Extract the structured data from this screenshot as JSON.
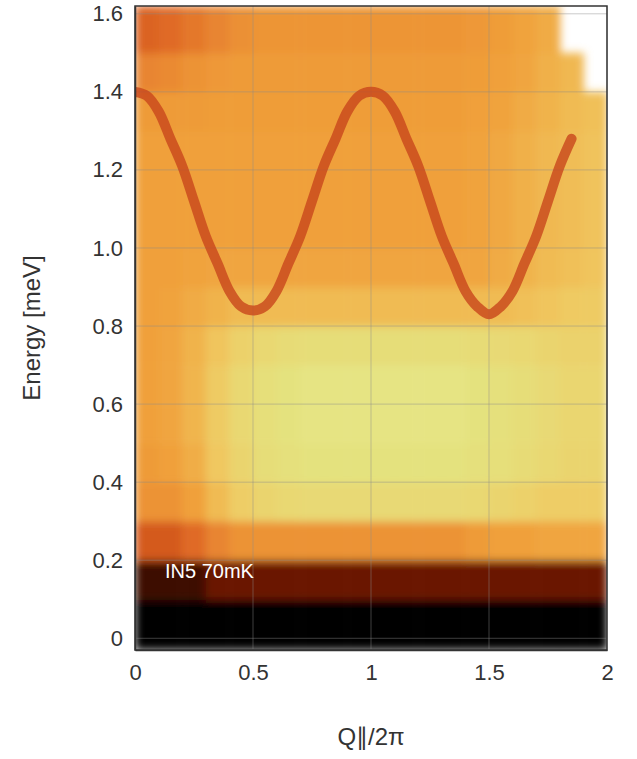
{
  "chart_data": {
    "type": "heatmap",
    "xlabel": "Q∥/2π",
    "ylabel": "Energy [meV]",
    "annotation": "IN5 70mK",
    "xlim": [
      0,
      2
    ],
    "ylim": [
      -0.03,
      1.62
    ],
    "xticks": [
      0,
      0.5,
      1,
      1.5,
      2
    ],
    "yticks": [
      0,
      0.2,
      0.4,
      0.6,
      0.8,
      {
        "value": 1,
        "label": "1.0"
      },
      1.2,
      1.4,
      1.6
    ],
    "grid": true,
    "zlim": [
      0,
      10
    ],
    "x_bins": [
      0,
      0.1,
      0.2,
      0.3,
      0.4,
      0.5,
      0.6,
      0.7,
      0.8,
      0.9,
      1,
      1.1,
      1.2,
      1.3,
      1.4,
      1.5,
      1.6,
      1.7,
      1.8,
      1.9,
      2
    ],
    "y_bins": [
      -0.03,
      0.1,
      0.2,
      0.3,
      0.4,
      0.5,
      0.6,
      0.7,
      0.8,
      0.9,
      1,
      1.1,
      1.2,
      1.3,
      1.4,
      1.5,
      1.62
    ],
    "z": [
      [
        10,
        10,
        10,
        10,
        10,
        10,
        10,
        10,
        10,
        10,
        10,
        10,
        10,
        10,
        10,
        10,
        10,
        10,
        10,
        10
      ],
      [
        9.3,
        9.3,
        9.3,
        8.8,
        8.8,
        8.8,
        8.8,
        8.8,
        8.8,
        8.8,
        8.8,
        8.8,
        8.8,
        8.8,
        8.8,
        8.8,
        8.8,
        8.8,
        8.8,
        8.8
      ],
      [
        6.5,
        6.5,
        6,
        5,
        4.5,
        4.5,
        4.5,
        4.5,
        4.5,
        4.5,
        4.5,
        4.5,
        4.5,
        4.5,
        4.2,
        4,
        4,
        3.8,
        3.8,
        3.8
      ],
      [
        4.5,
        4.5,
        4,
        3,
        2.2,
        1.8,
        1.6,
        1.5,
        1.5,
        1.5,
        1.5,
        1.5,
        1.5,
        1.5,
        1.6,
        1.8,
        2,
        2.2,
        2.2,
        2.2
      ],
      [
        4.2,
        4,
        3.5,
        2.5,
        1.8,
        1.3,
        1.1,
        1,
        1,
        1,
        1,
        1,
        1,
        1,
        1.1,
        1.2,
        1.4,
        1.6,
        1.8,
        1.8
      ],
      [
        4,
        3.8,
        3.2,
        2.3,
        1.6,
        1.2,
        1,
        0.9,
        0.9,
        0.9,
        0.9,
        0.9,
        0.9,
        0.9,
        1,
        1.1,
        1.3,
        1.5,
        1.7,
        1.7
      ],
      [
        4,
        3.8,
        3.2,
        2.3,
        1.6,
        1.2,
        1,
        0.9,
        0.9,
        0.9,
        0.9,
        0.9,
        0.9,
        0.9,
        1,
        1.1,
        1.3,
        1.5,
        1.7,
        1.7
      ],
      [
        4,
        3.8,
        3.3,
        2.6,
        2,
        1.6,
        1.4,
        1.3,
        1.3,
        1.3,
        1.3,
        1.3,
        1.3,
        1.3,
        1.4,
        1.5,
        1.6,
        1.8,
        1.9,
        1.9
      ],
      [
        4,
        3.9,
        3.6,
        3.3,
        3,
        3,
        3,
        3,
        3,
        3,
        3,
        3,
        3,
        3,
        3,
        3,
        2.8,
        2.6,
        2.4,
        2.3
      ],
      [
        4,
        4,
        3.9,
        3.8,
        3.8,
        3.8,
        3.8,
        3.8,
        3.8,
        3.8,
        3.8,
        3.8,
        3.8,
        3.8,
        3.8,
        3.6,
        3.3,
        3,
        2.8,
        2.6
      ],
      [
        4,
        4,
        4,
        4,
        4,
        4,
        4,
        4,
        4,
        4,
        4,
        4,
        4,
        4,
        3.9,
        3.7,
        3.4,
        3.1,
        2.9,
        2.7
      ],
      [
        4,
        4,
        4,
        4,
        4,
        4,
        4,
        4,
        4,
        4,
        4,
        4,
        4,
        4,
        3.9,
        3.7,
        3.4,
        3.1,
        2.9,
        2.7
      ],
      [
        4,
        4,
        4,
        4,
        4,
        4,
        4,
        4,
        4,
        4,
        4,
        4,
        4,
        4,
        3.9,
        3.7,
        3.4,
        3.1,
        2.9,
        2.7
      ],
      [
        4.2,
        4.2,
        4.2,
        4.1,
        4.1,
        4.1,
        4.1,
        4.1,
        4.1,
        4.1,
        4.1,
        4.1,
        4.1,
        4.1,
        4,
        3.9,
        3.6,
        3.3,
        3,
        2.8
      ],
      [
        5,
        4.8,
        4.5,
        4.3,
        4.2,
        4.2,
        4.2,
        4.2,
        4.2,
        4.2,
        4.2,
        4.2,
        4.2,
        4.2,
        4.1,
        4,
        3.8,
        3.4,
        3.1,
        null
      ],
      [
        6.2,
        6,
        5.5,
        5,
        4.6,
        4.4,
        4.4,
        4.4,
        4.4,
        4.4,
        4.4,
        4.4,
        4.4,
        4.4,
        4.3,
        4.1,
        3.9,
        3.6,
        null,
        null
      ]
    ],
    "series": [
      {
        "type": "line",
        "color": "#c8461c",
        "x": [
          0,
          0.05,
          0.1,
          0.15,
          0.2,
          0.25,
          0.3,
          0.35,
          0.4,
          0.45,
          0.5,
          0.55,
          0.6,
          0.65,
          0.7,
          0.75,
          0.8,
          0.85,
          0.9,
          0.95,
          1,
          1.05,
          1.1,
          1.15,
          1.2,
          1.25,
          1.3,
          1.35,
          1.4,
          1.45,
          1.5,
          1.55,
          1.6,
          1.65,
          1.7,
          1.75,
          1.8,
          1.85
        ],
        "values": [
          1.4,
          1.39,
          1.35,
          1.28,
          1.21,
          1.12,
          1.03,
          0.96,
          0.89,
          0.85,
          0.84,
          0.85,
          0.89,
          0.96,
          1.03,
          1.12,
          1.21,
          1.28,
          1.35,
          1.39,
          1.4,
          1.39,
          1.35,
          1.28,
          1.21,
          1.12,
          1.03,
          0.96,
          0.89,
          0.85,
          0.83,
          0.85,
          0.89,
          0.96,
          1.03,
          1.12,
          1.21,
          1.28
        ]
      }
    ]
  }
}
